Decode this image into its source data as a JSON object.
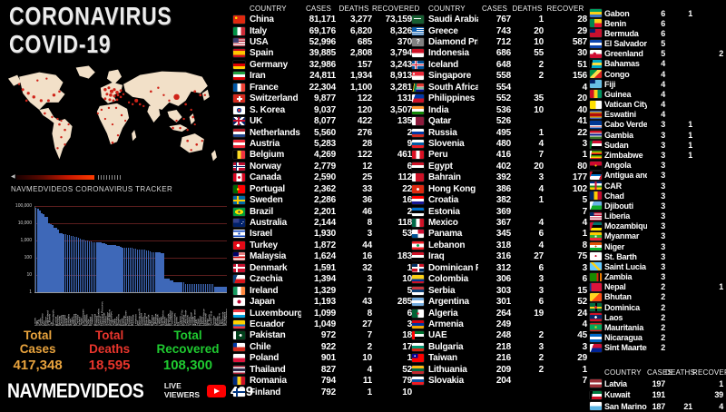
{
  "header": {
    "title_line1": "CORONAVIRUS",
    "title_line2": "COVID-19"
  },
  "map": {
    "caption": "NAVMEDVIDEOS CORONAVIRUS TRACKER"
  },
  "totals": {
    "cases": {
      "line1": "Total",
      "line2": "Cases",
      "value": "417,348",
      "color": "#e8a33d"
    },
    "deaths": {
      "line1": "Total",
      "line2": "Deaths",
      "value": "18,595",
      "color": "#e8352c"
    },
    "recovered": {
      "line1": "Total",
      "line2": "Recovered",
      "value": "108,300",
      "color": "#1fca30"
    }
  },
  "footer": {
    "brand": "NAVMEDVIDEOS",
    "live_line1": "LIVE",
    "live_line2": "VIEWERS",
    "viewers": "429"
  },
  "chart_data": {
    "type": "bar",
    "title": "",
    "xlabel": "",
    "ylabel": "",
    "scale": "log",
    "ylim": [
      1,
      100000
    ],
    "yticks": [
      "100,000",
      "10,000",
      "1,000",
      "100",
      "10",
      "1"
    ],
    "grid": true,
    "bar_color": "#3e68b8",
    "grid_color": "#5c1d1d",
    "categories": [
      "China",
      "Italy",
      "USA",
      "Spain",
      "Germany",
      "Iran",
      "France",
      "Switzerland",
      "S. Korea",
      "UK",
      "Netherlands",
      "Austria",
      "Belgium",
      "Norway",
      "Canada",
      "Portugal",
      "Sweden",
      "Brazil",
      "Australia",
      "Israel",
      "Turkey",
      "Malaysia",
      "Denmark",
      "Czechia",
      "Ireland",
      "Japan",
      "Luxembourg",
      "Ecuador",
      "Pakistan",
      "Chile",
      "Poland",
      "Thailand",
      "Romania",
      "Finland",
      "Saudi Arabia",
      "Greece",
      "Diamond Princess",
      "Indonesia",
      "Iceland",
      "Singapore",
      "South Africa",
      "Philippines",
      "India",
      "Qatar",
      "Russia",
      "Slovenia",
      "Peru",
      "Egypt",
      "Bahrain",
      "Hong Kong",
      "Croatia",
      "Estonia",
      "Mexico",
      "Panama",
      "Lebanon",
      "Iraq",
      "Dominican R.",
      "Colombia",
      "Serbia",
      "Argentina",
      "Algeria",
      "Armenia",
      "UAE",
      "Bulgaria",
      "Taiwan",
      "Lithuania",
      "Slovakia",
      "Latvia",
      "Kuwait",
      "San Marino",
      "Gabon",
      "Benin",
      "Bermuda",
      "El Salvador",
      "Greenland",
      "Bahamas",
      "Congo",
      "Fiji",
      "Guinea",
      "Vatican City",
      "Eswatini",
      "Cabo Verde",
      "Gambia",
      "Sudan",
      "Zimbabwe",
      "Angola",
      "Antigua and",
      "CAR",
      "Chad",
      "Djibouti",
      "Liberia",
      "Mozambique",
      "Myanmar",
      "Niger",
      "St. Barth",
      "Saint Lucia",
      "Zambia",
      "Nepal",
      "Bhutan",
      "Dominica",
      "Laos",
      "Mauritania",
      "Nicaragua",
      "Sint Maarten"
    ],
    "values": [
      81171,
      69176,
      52996,
      39885,
      32986,
      24811,
      22304,
      9877,
      9037,
      8077,
      5560,
      5283,
      4269,
      2779,
      2590,
      2362,
      2286,
      2201,
      2144,
      1930,
      1872,
      1624,
      1591,
      1394,
      1329,
      1193,
      1099,
      1049,
      972,
      922,
      901,
      827,
      794,
      792,
      767,
      743,
      712,
      686,
      648,
      558,
      554,
      552,
      536,
      526,
      495,
      480,
      416,
      402,
      392,
      386,
      382,
      369,
      367,
      345,
      318,
      316,
      312,
      306,
      303,
      301,
      264,
      249,
      248,
      218,
      216,
      209,
      204,
      197,
      191,
      187,
      6,
      6,
      6,
      5,
      5,
      4,
      4,
      4,
      4,
      4,
      4,
      3,
      3,
      3,
      3,
      3,
      3,
      3,
      3,
      3,
      3,
      3,
      3,
      3,
      3,
      3,
      3,
      2,
      2,
      2,
      2,
      2,
      2,
      2
    ]
  },
  "tables": {
    "col1": {
      "headers": [
        "COUNTRY",
        "CASES",
        "DEATHS",
        "RECOVERED"
      ],
      "rows": [
        [
          "China",
          "81,171",
          "3,277",
          "73,159"
        ],
        [
          "Italy",
          "69,176",
          "6,820",
          "8,326"
        ],
        [
          "USA",
          "52,996",
          "685",
          "370"
        ],
        [
          "Spain",
          "39,885",
          "2,808",
          "3,794"
        ],
        [
          "Germany",
          "32,986",
          "157",
          "3,243"
        ],
        [
          "Iran",
          "24,811",
          "1,934",
          "8,913"
        ],
        [
          "France",
          "22,304",
          "1,100",
          "3,281"
        ],
        [
          "Switzerland",
          "9,877",
          "122",
          "131"
        ],
        [
          "S. Korea",
          "9,037",
          "120",
          "3,507"
        ],
        [
          "UK",
          "8,077",
          "422",
          "135"
        ],
        [
          "Netherlands",
          "5,560",
          "276",
          "2"
        ],
        [
          "Austria",
          "5,283",
          "28",
          "9"
        ],
        [
          "Belgium",
          "4,269",
          "122",
          "461"
        ],
        [
          "Norway",
          "2,779",
          "12",
          "6"
        ],
        [
          "Canada",
          "2,590",
          "25",
          "112"
        ],
        [
          "Portugal",
          "2,362",
          "33",
          "22"
        ],
        [
          "Sweden",
          "2,286",
          "36",
          "16"
        ],
        [
          "Brazil",
          "2,201",
          "46",
          "2"
        ],
        [
          "Australia",
          "2,144",
          "8",
          "118"
        ],
        [
          "Israel",
          "1,930",
          "3",
          "53"
        ],
        [
          "Turkey",
          "1,872",
          "44",
          ""
        ],
        [
          "Malaysia",
          "1,624",
          "16",
          "183"
        ],
        [
          "Denmark",
          "1,591",
          "32",
          "1"
        ],
        [
          "Czechia",
          "1,394",
          "3",
          "10"
        ],
        [
          "Ireland",
          "1,329",
          "7",
          "5"
        ],
        [
          "Japan",
          "1,193",
          "43",
          "285"
        ],
        [
          "Luxembourg",
          "1,099",
          "8",
          "6"
        ],
        [
          "Ecuador",
          "1,049",
          "27",
          "3"
        ],
        [
          "Pakistan",
          "972",
          "7",
          "18"
        ],
        [
          "Chile",
          "922",
          "2",
          "17"
        ],
        [
          "Poland",
          "901",
          "10",
          "1"
        ],
        [
          "Thailand",
          "827",
          "4",
          "52"
        ],
        [
          "Romania",
          "794",
          "11",
          "79"
        ],
        [
          "Finland",
          "792",
          "1",
          "10"
        ]
      ]
    },
    "col2": {
      "headers": [
        "COUNTRY",
        "CASES",
        "DEATHS",
        "RECOVER"
      ],
      "rows": [
        [
          "Saudi Arabia",
          "767",
          "1",
          "28"
        ],
        [
          "Greece",
          "743",
          "20",
          "29"
        ],
        [
          "Diamond Princess",
          "712",
          "10",
          "587"
        ],
        [
          "Indonesia",
          "686",
          "55",
          "30"
        ],
        [
          "Iceland",
          "648",
          "2",
          "51"
        ],
        [
          "Singapore",
          "558",
          "2",
          "156"
        ],
        [
          "South Africa",
          "554",
          "",
          "4"
        ],
        [
          "Philippines",
          "552",
          "35",
          "20"
        ],
        [
          "India",
          "536",
          "10",
          "40"
        ],
        [
          "Qatar",
          "526",
          "",
          "41"
        ],
        [
          "Russia",
          "495",
          "1",
          "22"
        ],
        [
          "Slovenia",
          "480",
          "4",
          "3"
        ],
        [
          "Peru",
          "416",
          "7",
          "1"
        ],
        [
          "Egypt",
          "402",
          "20",
          "80"
        ],
        [
          "Bahrain",
          "392",
          "3",
          "177"
        ],
        [
          "Hong Kong",
          "386",
          "4",
          "102"
        ],
        [
          "Croatia",
          "382",
          "1",
          "5"
        ],
        [
          "Estonia",
          "369",
          "",
          "7"
        ],
        [
          "Mexico",
          "367",
          "4",
          "4"
        ],
        [
          "Panama",
          "345",
          "6",
          "1"
        ],
        [
          "Lebanon",
          "318",
          "4",
          "8"
        ],
        [
          "Iraq",
          "316",
          "27",
          "75"
        ],
        [
          "Dominican R.",
          "312",
          "6",
          "3"
        ],
        [
          "Colombia",
          "306",
          "3",
          "6"
        ],
        [
          "Serbia",
          "303",
          "3",
          "15"
        ],
        [
          "Argentina",
          "301",
          "6",
          "52"
        ],
        [
          "Algeria",
          "264",
          "19",
          "24"
        ],
        [
          "Armenia",
          "249",
          "",
          "4"
        ],
        [
          "UAE",
          "248",
          "2",
          "45"
        ],
        [
          "Bulgaria",
          "218",
          "3",
          "3"
        ],
        [
          "Taiwan",
          "216",
          "2",
          "29"
        ],
        [
          "Lithuania",
          "209",
          "2",
          "1"
        ],
        [
          "Slovakia",
          "204",
          "",
          "7"
        ]
      ]
    },
    "col3": {
      "rows": [
        [
          "Gabon",
          "6",
          "1",
          ""
        ],
        [
          "Benin",
          "6",
          "",
          ""
        ],
        [
          "Bermuda",
          "6",
          "",
          ""
        ],
        [
          "El Salvador",
          "5",
          "",
          ""
        ],
        [
          "Greenland",
          "5",
          "",
          "2"
        ],
        [
          "Bahamas",
          "4",
          "",
          ""
        ],
        [
          "Congo",
          "4",
          "",
          ""
        ],
        [
          "Fiji",
          "4",
          "",
          ""
        ],
        [
          "Guinea",
          "4",
          "",
          ""
        ],
        [
          "Vatican City",
          "4",
          "",
          ""
        ],
        [
          "Eswatini",
          "4",
          "",
          ""
        ],
        [
          "Cabo Verde",
          "3",
          "1",
          ""
        ],
        [
          "Gambia",
          "3",
          "1",
          ""
        ],
        [
          "Sudan",
          "3",
          "1",
          ""
        ],
        [
          "Zimbabwe",
          "3",
          "1",
          ""
        ],
        [
          "Angola",
          "3",
          "",
          ""
        ],
        [
          "Antigua and",
          "3",
          "",
          ""
        ],
        [
          "CAR",
          "3",
          "",
          ""
        ],
        [
          "Chad",
          "3",
          "",
          ""
        ],
        [
          "Djibouti",
          "3",
          "",
          ""
        ],
        [
          "Liberia",
          "3",
          "",
          ""
        ],
        [
          "Mozambique",
          "3",
          "",
          ""
        ],
        [
          "Myanmar",
          "3",
          "",
          ""
        ],
        [
          "Niger",
          "3",
          "",
          ""
        ],
        [
          "St. Barth",
          "3",
          "",
          ""
        ],
        [
          "Saint Lucia",
          "3",
          "",
          ""
        ],
        [
          "Zambia",
          "3",
          "",
          ""
        ],
        [
          "Nepal",
          "2",
          "",
          "1"
        ],
        [
          "Bhutan",
          "2",
          "",
          ""
        ],
        [
          "Dominica",
          "2",
          "",
          ""
        ],
        [
          "Laos",
          "2",
          "",
          ""
        ],
        [
          "Mauritania",
          "2",
          "",
          ""
        ],
        [
          "Nicaragua",
          "2",
          "",
          ""
        ],
        [
          "Sint Maarten",
          "2",
          "",
          ""
        ]
      ],
      "footer_headers": [
        "COUNTRY",
        "CASES",
        "DEATHS",
        "RECOVER"
      ],
      "footer_rows": [
        [
          "Latvia",
          "197",
          "",
          "1"
        ],
        [
          "Kuwait",
          "191",
          "",
          "39"
        ],
        [
          "San Marino",
          "187",
          "21",
          "4"
        ]
      ]
    }
  }
}
